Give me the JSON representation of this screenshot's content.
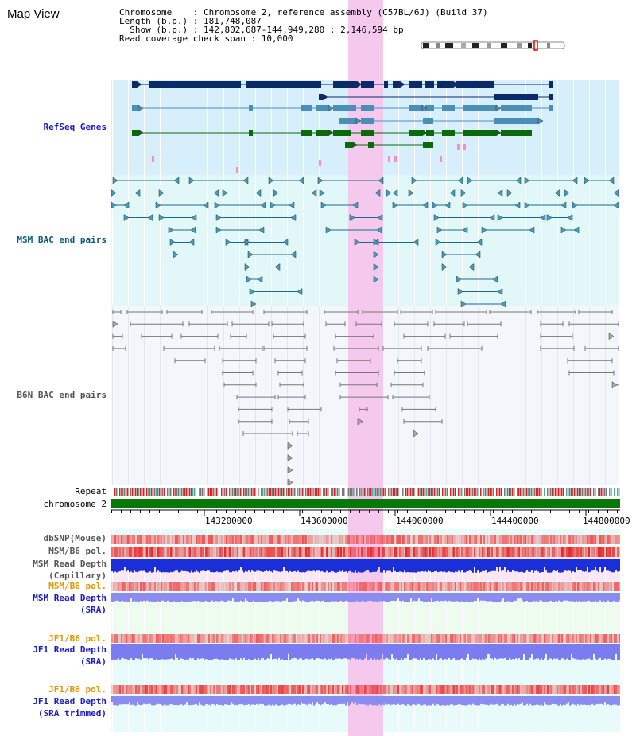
{
  "page": {
    "title": "Map View"
  },
  "info": {
    "chromosome": "Chromosome    : Chromosome 2, reference assembly (C57BL/6J) (Build 37)",
    "length": "Length (b.p.) : 181,748,087",
    "show": "  Show (b.p.) : 142,802,687-144,949,280 : 2,146,594 bp",
    "coverage": "Read coverage check span : 10,000"
  },
  "tracks": {
    "refseq": "RefSeq Genes",
    "msm_bac": "MSM BAC end pairs",
    "b6n_bac": "B6N BAC end pairs",
    "repeat": "Repeat",
    "chromosome": "chromosome 2",
    "dbsnp": "dbSNP(Mouse)",
    "msm_b6_pol": "MSM/B6 pol.",
    "msm_depth_cap_1": "MSM Read Depth",
    "msm_depth_cap_2": "(Capillary)",
    "msm_b6_pol_2": "MSM/B6 pol.",
    "msm_depth_sra_1": "MSM Read Depth",
    "msm_depth_sra_2": "(SRA)",
    "jf1_b6_pol": "JF1/B6 pol.",
    "jf1_depth_sra_1": "JF1 Read Depth",
    "jf1_depth_sra_2": "(SRA)",
    "jf1_b6_pol_2": "JF1/B6 pol.",
    "jf1_depth_trim_1": "JF1 Read Depth",
    "jf1_depth_trim_2": "(SRA trimmed)"
  },
  "axis": {
    "ticks": [
      "143200000",
      "143600000",
      "144000000",
      "144400000",
      "144800000"
    ]
  },
  "colors": {
    "gene_dark": "#0a2a6a",
    "gene_mid": "#4a8fb8",
    "gene_green": "#0a6a0a",
    "label_blue": "#1a1acc",
    "label_teal": "#0a5a7a",
    "label_gray": "#555555",
    "label_orange": "#e69400",
    "highlight": "#f7d2f0",
    "chrom_green": "#087808"
  }
}
